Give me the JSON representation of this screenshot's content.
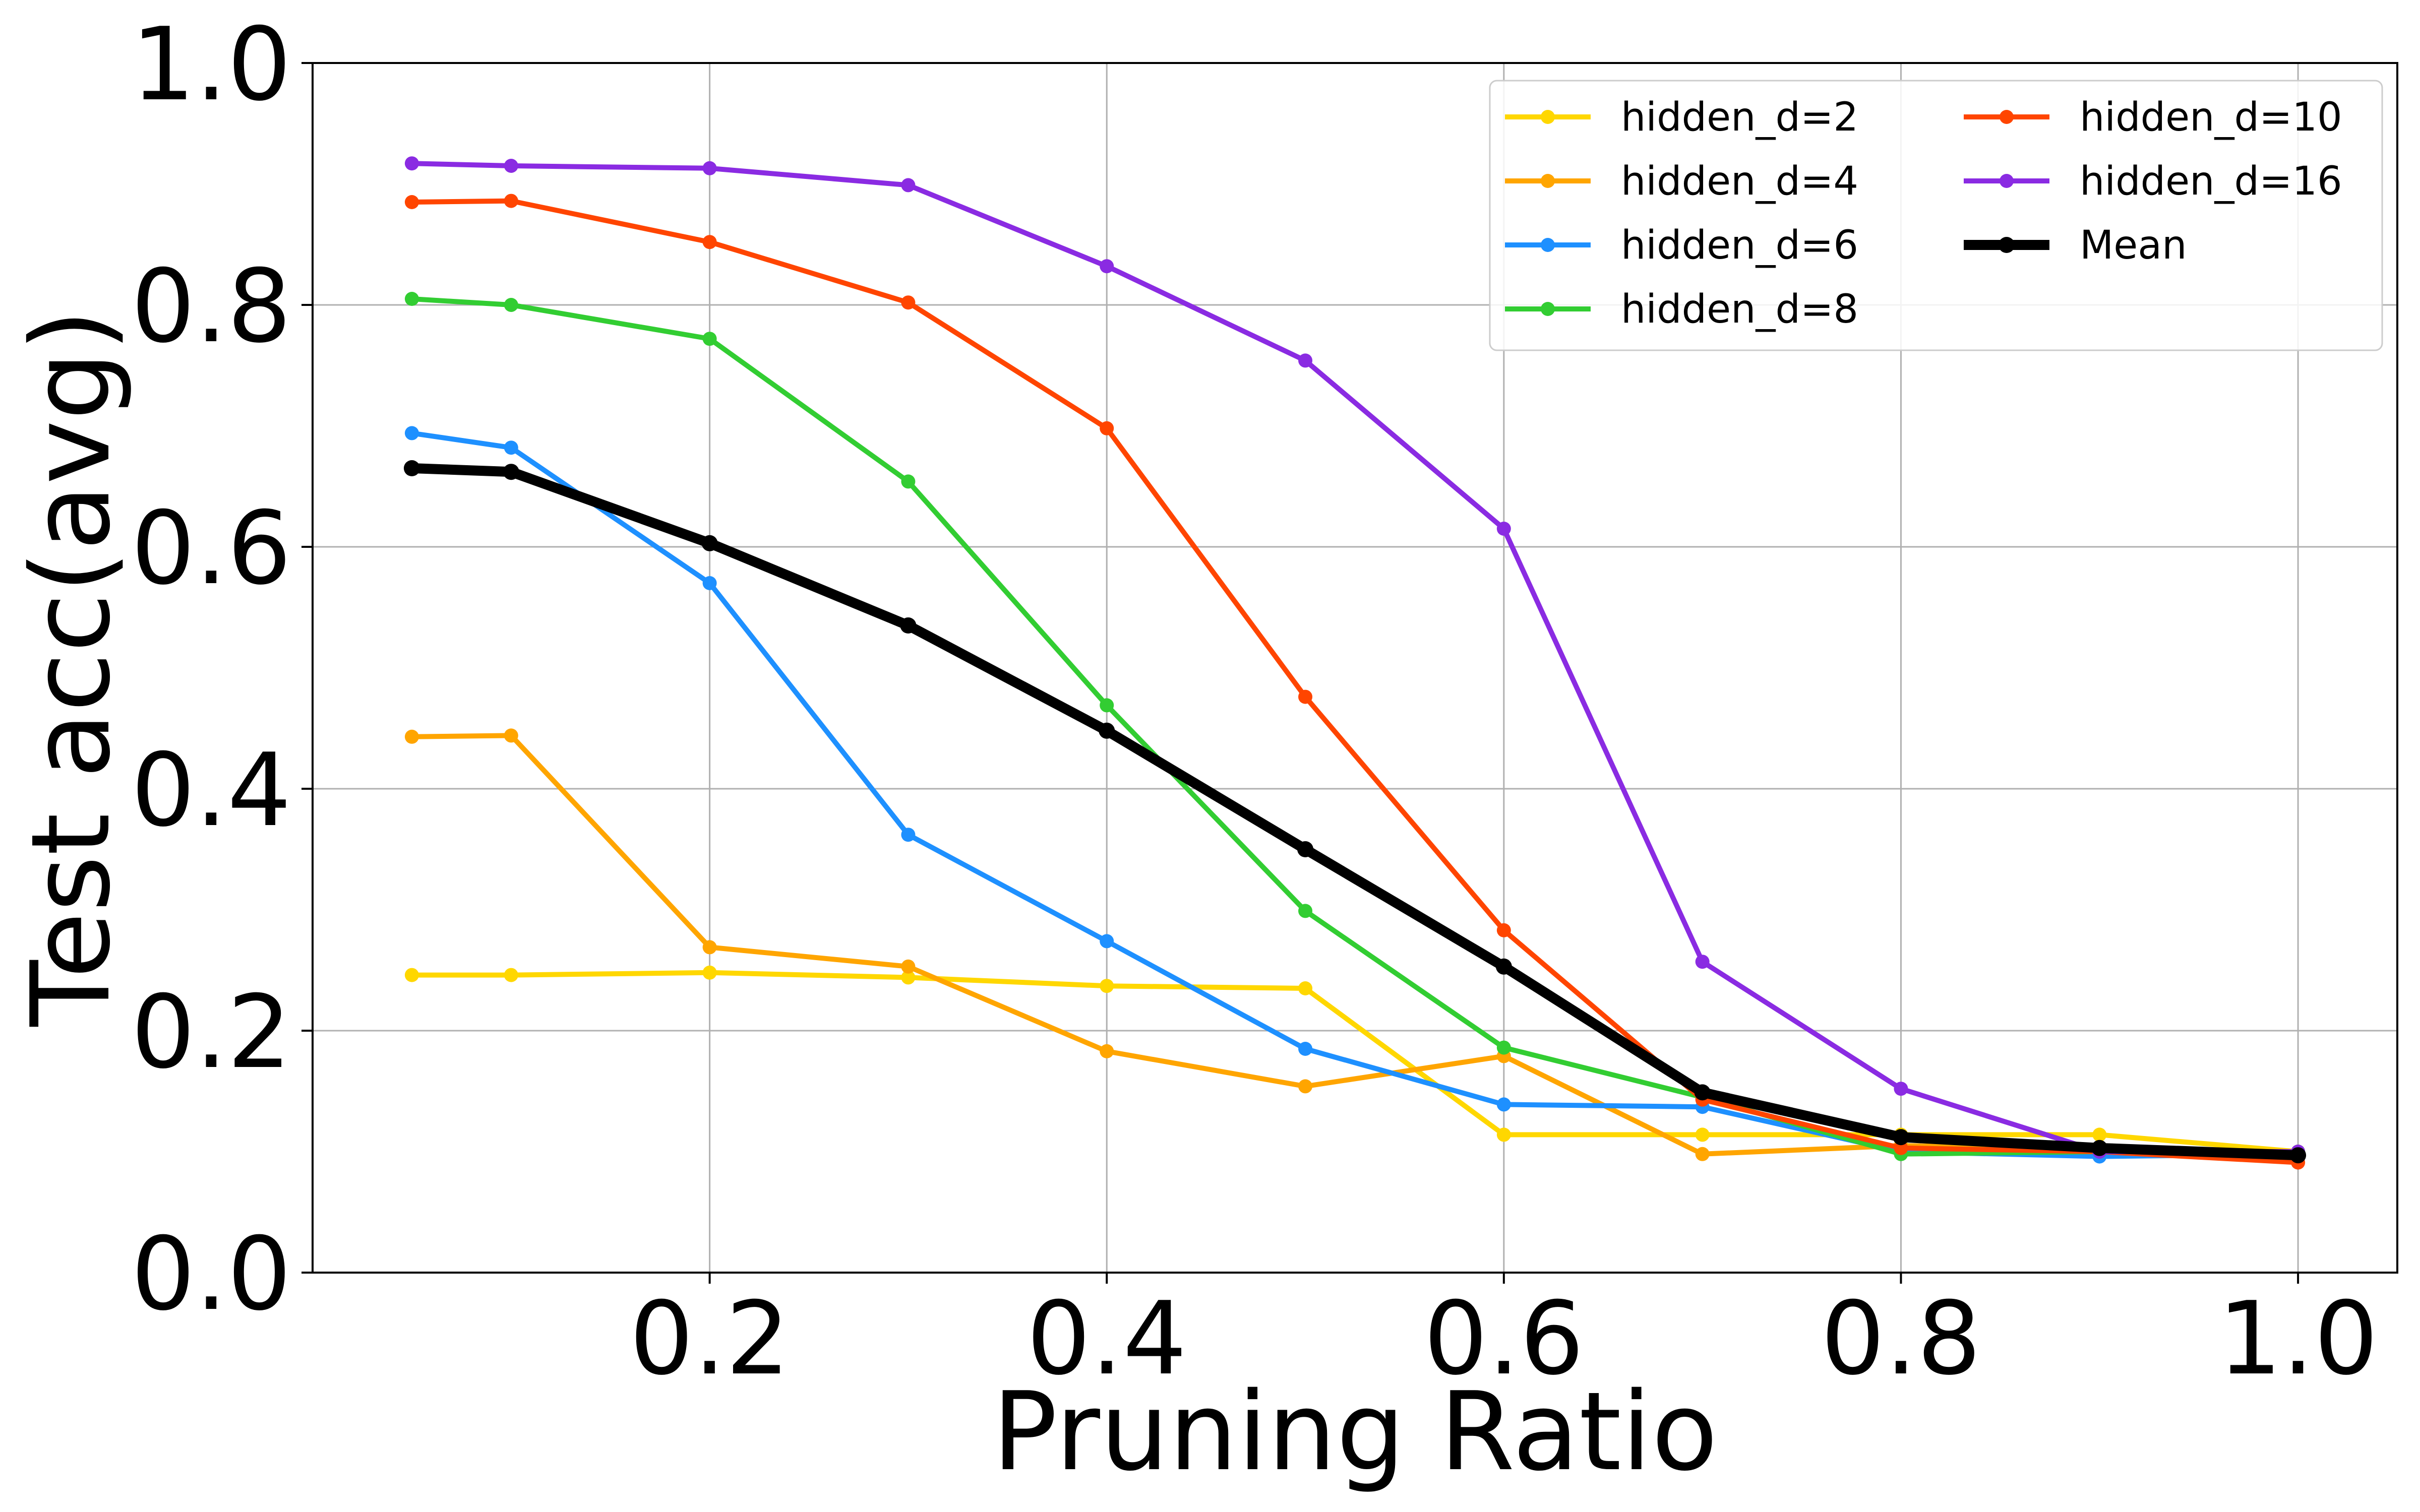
{
  "chart_data": {
    "type": "line",
    "title": "",
    "xlabel": "Pruning Ratio",
    "ylabel": "Test acc(avg)",
    "xlim": [
      0.0,
      1.05
    ],
    "ylim": [
      0.0,
      1.0
    ],
    "x_ticks": [
      "0.2",
      "0.4",
      "0.6",
      "0.8",
      "1.0"
    ],
    "y_ticks": [
      "0.0",
      "0.2",
      "0.4",
      "0.6",
      "0.8",
      "1.0"
    ],
    "grid": true,
    "legend_position": "top-right",
    "x": [
      0.05,
      0.1,
      0.2,
      0.3,
      0.4,
      0.5,
      0.6,
      0.7,
      0.8,
      0.9,
      1.0
    ],
    "series": [
      {
        "name": "hidden_d=2",
        "color": "#ffd700",
        "values": [
          0.246,
          0.246,
          0.248,
          0.244,
          0.237,
          0.235,
          0.114,
          0.114,
          0.114,
          0.114,
          0.1
        ]
      },
      {
        "name": "hidden_d=4",
        "color": "#ffa500",
        "values": [
          0.443,
          0.444,
          0.269,
          0.253,
          0.183,
          0.154,
          0.179,
          0.098,
          0.105,
          0.102,
          0.1
        ]
      },
      {
        "name": "hidden_d=6",
        "color": "#1e90ff",
        "values": [
          0.694,
          0.682,
          0.57,
          0.362,
          0.274,
          0.185,
          0.139,
          0.137,
          0.1,
          0.096,
          0.098
        ]
      },
      {
        "name": "hidden_d=8",
        "color": "#32cd32",
        "values": [
          0.805,
          0.8,
          0.772,
          0.654,
          0.469,
          0.299,
          0.186,
          0.145,
          0.098,
          0.1,
          0.1
        ]
      },
      {
        "name": "hidden_d=10",
        "color": "#ff4500",
        "values": [
          0.885,
          0.886,
          0.852,
          0.802,
          0.698,
          0.476,
          0.283,
          0.143,
          0.103,
          0.1,
          0.091
        ]
      },
      {
        "name": "hidden_d=16",
        "color": "#8a2be2",
        "values": [
          0.917,
          0.915,
          0.913,
          0.899,
          0.832,
          0.754,
          0.615,
          0.257,
          0.152,
          0.1,
          0.1
        ]
      },
      {
        "name": "Mean",
        "color": "#000000",
        "values": [
          0.665,
          0.662,
          0.603,
          0.535,
          0.448,
          0.35,
          0.253,
          0.149,
          0.112,
          0.103,
          0.097
        ]
      }
    ]
  }
}
